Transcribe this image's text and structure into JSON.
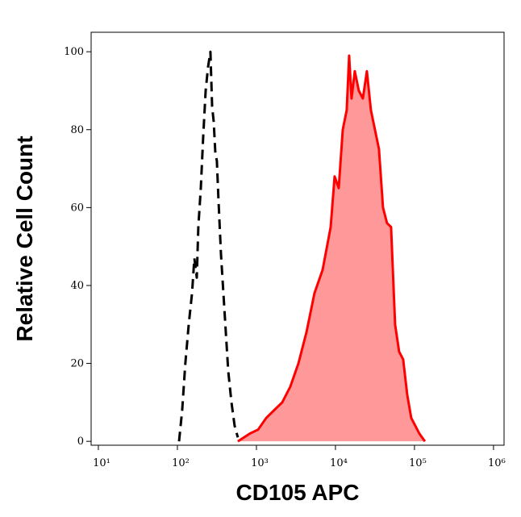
{
  "chart_data": {
    "type": "histogram-line",
    "log_x": true,
    "x_label": "CD105 APC",
    "y_label": "Relative Cell Count",
    "xlim": [
      8.1,
      1360000
    ],
    "ylim": [
      -1,
      105
    ],
    "xticks": [
      {
        "value": 10,
        "label": "10¹"
      },
      {
        "value": 100,
        "label": "10²"
      },
      {
        "value": 1000,
        "label": "10³"
      },
      {
        "value": 10000,
        "label": "10⁴"
      },
      {
        "value": 100000,
        "label": "10⁵"
      },
      {
        "value": 1000000,
        "label": "10⁶"
      }
    ],
    "yticks": [
      0,
      20,
      40,
      60,
      80,
      100
    ],
    "series": [
      {
        "color": "#000000",
        "dashed": true,
        "x": [
          105,
          115,
          126,
          139,
          153,
          164,
          176,
          184,
          198,
          212,
          228,
          244,
          262,
          275,
          288,
          302,
          316,
          331,
          356,
          382,
          410,
          440,
          483,
          530,
          582
        ],
        "values": [
          0,
          8,
          20,
          30,
          38,
          47,
          42,
          55,
          65,
          78,
          90,
          96,
          100,
          86,
          82,
          74,
          72,
          62,
          48,
          38,
          28,
          18,
          10,
          4,
          1
        ]
      },
      {
        "color": "#ff0000",
        "fill": "#ff9999",
        "dashed": false,
        "x": [
          582,
          828,
          1050,
          1330,
          1680,
          2120,
          2680,
          3400,
          4300,
          5430,
          6870,
          8700,
          9770,
          11000,
          12360,
          13900,
          14900,
          16000,
          17580,
          19770,
          22230,
          25000,
          28120,
          31620,
          35560,
          40000,
          44980,
          50580,
          56880,
          63970,
          71940,
          80900,
          90980,
          102300,
          115100,
          135800
        ],
        "values": [
          0,
          2,
          3,
          6,
          8,
          10,
          14,
          20,
          28,
          38,
          44,
          55,
          68,
          65,
          80,
          85,
          99,
          88,
          95,
          90,
          88,
          95,
          85,
          80,
          75,
          60,
          56,
          55,
          30,
          23,
          21,
          12,
          6,
          4,
          2,
          0
        ]
      }
    ]
  }
}
